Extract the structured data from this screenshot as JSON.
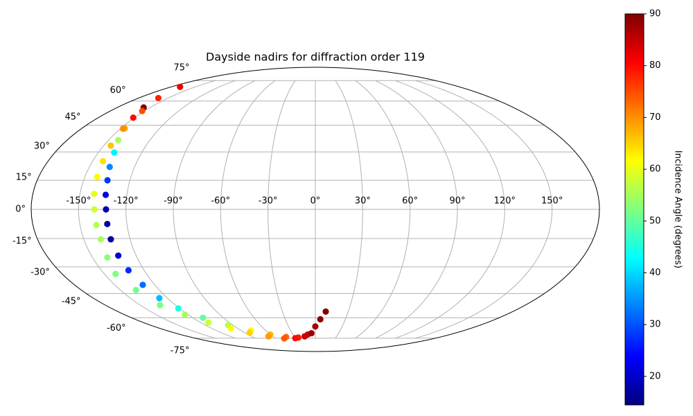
{
  "chart_data": {
    "type": "scatter",
    "projection": "mollweide",
    "title": "Dayside nadirs for diffraction order 119",
    "grid": true,
    "xlim": [
      -180,
      180
    ],
    "ylim": [
      -90,
      90
    ],
    "xticks": [
      {
        "value": -150,
        "label": "-150°"
      },
      {
        "value": -120,
        "label": "-120°"
      },
      {
        "value": -90,
        "label": "-90°"
      },
      {
        "value": -60,
        "label": "-60°"
      },
      {
        "value": -30,
        "label": "-30°"
      },
      {
        "value": 0,
        "label": "0°"
      },
      {
        "value": 30,
        "label": "30°"
      },
      {
        "value": 60,
        "label": "60°"
      },
      {
        "value": 90,
        "label": "90°"
      },
      {
        "value": 120,
        "label": "120°"
      },
      {
        "value": 150,
        "label": "150°"
      }
    ],
    "yticks": [
      {
        "value": -75,
        "label": "-75°"
      },
      {
        "value": -60,
        "label": "-60°"
      },
      {
        "value": -45,
        "label": "-45°"
      },
      {
        "value": -30,
        "label": "-30°"
      },
      {
        "value": -15,
        "label": "-15°"
      },
      {
        "value": 0,
        "label": "0°"
      },
      {
        "value": 15,
        "label": "15°"
      },
      {
        "value": 30,
        "label": "30°"
      },
      {
        "value": 45,
        "label": "45°"
      },
      {
        "value": 60,
        "label": "60°"
      },
      {
        "value": 75,
        "label": "75°"
      }
    ],
    "colorbar": {
      "label": "Incidence Angle (degrees)",
      "colormap": "jet",
      "lim": [
        14.5,
        90
      ],
      "ticks": [
        20,
        30,
        40,
        50,
        60,
        70,
        80,
        90
      ]
    },
    "series": [
      {
        "x": [
          -156,
          -151,
          -147,
          -143,
          -139,
          -136.5,
          -134.5,
          -133.5,
          -132.6,
          -132.5,
          -132.5,
          -132,
          -131,
          -129,
          -126.5,
          -121,
          -110,
          -95,
          -78,
          -60,
          -42,
          -25,
          -10,
          0,
          5,
          9.5
        ],
        "y": [
          55.8,
          49.5,
          43.2,
          36.5,
          29.7,
          22,
          15,
          7.5,
          0,
          -7.5,
          -15.4,
          -24,
          -31.9,
          -40,
          -47.7,
          -54,
          -60,
          -65,
          -69,
          -72,
          -74,
          -74.5,
          -72,
          -66,
          -61,
          -56
        ],
        "values": [
          90,
          80,
          68,
          55,
          42,
          34,
          28,
          22,
          18,
          16.5,
          17,
          21,
          27,
          32,
          38,
          45,
          50,
          56,
          62,
          67,
          73,
          79,
          84,
          87,
          89,
          90
        ]
      },
      {
        "x": [
          -169,
          -160,
          -152,
          -148,
          -145,
          -143,
          -142,
          -141,
          -140,
          -139.5,
          -139,
          -140,
          -142,
          -138,
          -133,
          -123,
          -112,
          -98,
          -84,
          -66,
          -47,
          -30,
          -15,
          -5
        ],
        "y": [
          70,
          62,
          53.6,
          43,
          33.5,
          25,
          16.8,
          8,
          0,
          -8,
          -15.4,
          -25,
          -33.9,
          -43,
          -51.9,
          -58,
          -63.3,
          -67.5,
          -70.7,
          -73.5,
          -75.2,
          -75,
          -73.5,
          -71
        ],
        "values": [
          82,
          78,
          75,
          70,
          66,
          64,
          62,
          60,
          58,
          56,
          55,
          53,
          52,
          51,
          52,
          55,
          58,
          62,
          65,
          69,
          74,
          80,
          85,
          88
        ]
      }
    ]
  }
}
